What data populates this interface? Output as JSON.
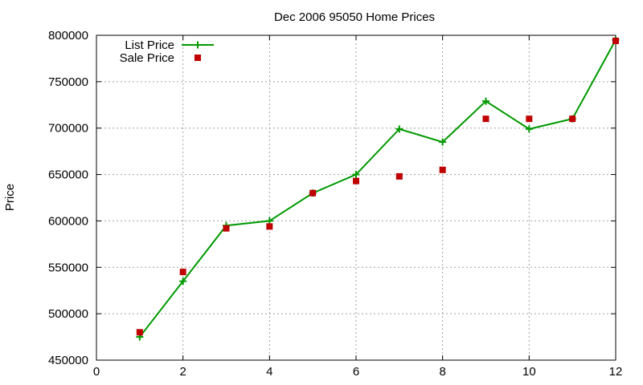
{
  "chart_data": {
    "type": "line",
    "title": "Dec 2006 95050 Home Prices",
    "xlabel": "",
    "ylabel": "Price",
    "xlim": [
      0,
      12
    ],
    "ylim": [
      450000,
      800000
    ],
    "x_ticks": [
      0,
      2,
      4,
      6,
      8,
      10,
      12
    ],
    "y_ticks": [
      450000,
      500000,
      550000,
      600000,
      650000,
      700000,
      750000,
      800000
    ],
    "x_tick_labels": [
      "0",
      "2",
      "4",
      "6",
      "8",
      "10",
      "12"
    ],
    "y_tick_labels": [
      "450000",
      "500000",
      "550000",
      "600000",
      "650000",
      "700000",
      "750000",
      "800000"
    ],
    "grid": true,
    "legend_position": "top-left",
    "series": [
      {
        "name": "List Price",
        "style": "linespoints",
        "marker": "plus",
        "color": "#009900",
        "x": [
          1,
          2,
          3,
          4,
          5,
          6,
          7,
          8,
          9,
          10,
          11,
          12
        ],
        "y": [
          475000,
          535000,
          595000,
          600000,
          630000,
          650000,
          699000,
          685000,
          729000,
          699000,
          710000,
          795000
        ]
      },
      {
        "name": "Sale Price",
        "style": "points",
        "marker": "square",
        "color": "#c00000",
        "x": [
          1,
          2,
          3,
          4,
          5,
          6,
          7,
          8,
          9,
          10,
          11,
          12
        ],
        "y": [
          480000,
          545000,
          592000,
          594000,
          630000,
          643000,
          648000,
          655000,
          710000,
          710000,
          710000,
          794000
        ]
      }
    ]
  }
}
